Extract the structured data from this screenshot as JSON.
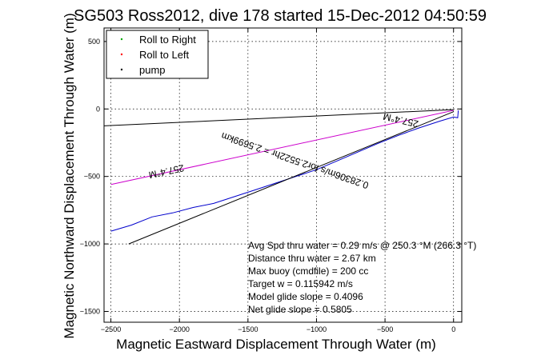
{
  "chart_data": {
    "type": "line",
    "title": "SG503 Ross2012, dive 178 started 15-Dec-2012 04:50:59",
    "xlabel": "Magnetic Eastward Displacement Through Water (m)",
    "ylabel": "Magnetic Northward Displacement Through Water (m)",
    "xlim": [
      -2550,
      60
    ],
    "ylim": [
      -1580,
      600
    ],
    "xticks": [
      -2500,
      -2000,
      -1500,
      -1000,
      -500,
      0
    ],
    "yticks": [
      -1500,
      -1000,
      -500,
      0,
      500
    ],
    "grid": true,
    "legend_position": "top-left",
    "legend": [
      {
        "label": "Roll to Right",
        "color": "#00aa00"
      },
      {
        "label": "Roll to Left",
        "color": "#ff0000"
      },
      {
        "label": "pump",
        "color": "#000000"
      }
    ],
    "series": [
      {
        "name": "glider track",
        "color": "#0000cc",
        "x": [
          -2500,
          -2350,
          -2200,
          -2050,
          -1900,
          -1750,
          -1600,
          -1450,
          -1300,
          -1150,
          -1000,
          -850,
          -700,
          -550,
          -400,
          -250,
          -100,
          0,
          30,
          35
        ],
        "y": [
          -905,
          -860,
          -800,
          -770,
          -730,
          -700,
          -650,
          -600,
          -550,
          -500,
          -450,
          -385,
          -320,
          -255,
          -195,
          -140,
          -90,
          -60,
          -65,
          -10
        ]
      },
      {
        "name": "surface track",
        "color": "#cc00cc",
        "x": [
          -2500,
          0
        ],
        "y": [
          -560,
          -10
        ]
      },
      {
        "name": "heading line 1",
        "color": "#000000",
        "x": [
          -2550,
          0
        ],
        "y": [
          -125,
          -5
        ]
      },
      {
        "name": "heading line 2",
        "color": "#000000",
        "x": [
          -2370,
          0
        ],
        "y": [
          -1000,
          -20
        ]
      }
    ],
    "annotations": [
      {
        "text": "257.4°M",
        "x": -2100,
        "y": -440,
        "angle": 168
      },
      {
        "text": "257.4°M",
        "x": -380,
        "y": -60,
        "angle": 193
      },
      {
        "text": "0.28306m/s for2.5522hr = 2.5699km",
        "x": -1150,
        "y": -360,
        "angle": 199
      }
    ],
    "stats": [
      "Avg Spd thru water =  0.29 m/s @ 250.3    °M (266.3 °T)",
      "Distance thru water =  2.67 km",
      "Max buoy (cmdfile) = 200 cc",
      "Target w = 0.115942 m/s",
      "Model glide slope = 0.4096",
      "Net glide slope = 0.5805"
    ]
  }
}
